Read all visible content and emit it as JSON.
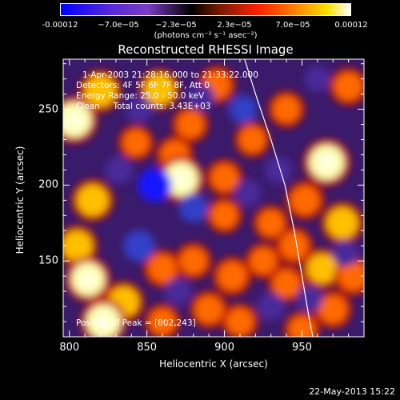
{
  "colorbar": {
    "labels": [
      "-0.00012",
      "−7.0e−05",
      "−2.3e−05",
      "2.3e−05",
      "7.0e−05",
      "0.00012"
    ],
    "units": "(photons cm⁻² s⁻¹ asec⁻²)"
  },
  "title": "Reconstructed RHESSI Image",
  "info": {
    "time": "1-Apr-2003 21:28:16.000 to 21:33:22.000",
    "detectors": "Detectors: 4F 5F 6F 7F 8F, Att 0",
    "energy": "Energy Range: 25.0 - 50.0 keV",
    "clean": "Clean     Total counts: 3.43E+03",
    "peak": "Position of Peak = [802,243]"
  },
  "footer": "22-May-2013 15:22",
  "chart_data": {
    "type": "heatmap",
    "title": "Reconstructed RHESSI Image",
    "xlabel": "Heliocentric X (arcsec)",
    "ylabel": "Heliocentric Y (arcsec)",
    "xlim": [
      796,
      990
    ],
    "ylim": [
      100,
      283
    ],
    "xticks": [
      800,
      850,
      900,
      950
    ],
    "yticks": [
      150,
      200,
      250
    ],
    "colorbar_range": [
      -0.00012,
      0.00012
    ],
    "blobs": [
      {
        "x": 803,
        "y": 243,
        "v": 1.0
      },
      {
        "x": 820,
        "y": 262,
        "v": 0.75
      },
      {
        "x": 858,
        "y": 263,
        "v": 0.7
      },
      {
        "x": 895,
        "y": 266,
        "v": 0.55
      },
      {
        "x": 878,
        "y": 240,
        "v": 0.5
      },
      {
        "x": 868,
        "y": 220,
        "v": 0.55
      },
      {
        "x": 843,
        "y": 228,
        "v": 0.45
      },
      {
        "x": 872,
        "y": 204,
        "v": 0.95
      },
      {
        "x": 900,
        "y": 205,
        "v": 0.5
      },
      {
        "x": 918,
        "y": 230,
        "v": 0.45
      },
      {
        "x": 940,
        "y": 250,
        "v": 0.5
      },
      {
        "x": 966,
        "y": 215,
        "v": 1.0
      },
      {
        "x": 952,
        "y": 190,
        "v": 0.6
      },
      {
        "x": 976,
        "y": 175,
        "v": 0.75
      },
      {
        "x": 930,
        "y": 175,
        "v": 0.45
      },
      {
        "x": 900,
        "y": 180,
        "v": 0.45
      },
      {
        "x": 815,
        "y": 190,
        "v": 0.75
      },
      {
        "x": 805,
        "y": 160,
        "v": 0.7
      },
      {
        "x": 812,
        "y": 138,
        "v": 0.9
      },
      {
        "x": 835,
        "y": 123,
        "v": 0.7
      },
      {
        "x": 822,
        "y": 110,
        "v": 0.95
      },
      {
        "x": 860,
        "y": 145,
        "v": 0.55
      },
      {
        "x": 880,
        "y": 150,
        "v": 0.5
      },
      {
        "x": 905,
        "y": 140,
        "v": 0.6
      },
      {
        "x": 925,
        "y": 150,
        "v": 0.45
      },
      {
        "x": 945,
        "y": 160,
        "v": 0.55
      },
      {
        "x": 940,
        "y": 135,
        "v": 0.5
      },
      {
        "x": 963,
        "y": 145,
        "v": 0.65
      },
      {
        "x": 983,
        "y": 140,
        "v": 0.6
      },
      {
        "x": 970,
        "y": 118,
        "v": 0.55
      },
      {
        "x": 890,
        "y": 118,
        "v": 0.55
      },
      {
        "x": 910,
        "y": 110,
        "v": 0.5
      },
      {
        "x": 950,
        "y": 105,
        "v": 0.45
      },
      {
        "x": 860,
        "y": 110,
        "v": 0.45
      },
      {
        "x": 980,
        "y": 265,
        "v": 0.55
      },
      {
        "x": 845,
        "y": 250,
        "v": -0.45
      },
      {
        "x": 885,
        "y": 258,
        "v": -0.5
      },
      {
        "x": 912,
        "y": 250,
        "v": -0.55
      },
      {
        "x": 855,
        "y": 200,
        "v": -0.9
      },
      {
        "x": 832,
        "y": 210,
        "v": -0.5
      },
      {
        "x": 880,
        "y": 185,
        "v": -0.6
      },
      {
        "x": 845,
        "y": 160,
        "v": -0.75
      },
      {
        "x": 915,
        "y": 195,
        "v": -0.45
      },
      {
        "x": 935,
        "y": 210,
        "v": -0.5
      },
      {
        "x": 930,
        "y": 120,
        "v": -0.5
      },
      {
        "x": 955,
        "y": 125,
        "v": -0.45
      },
      {
        "x": 870,
        "y": 130,
        "v": -0.45
      },
      {
        "x": 978,
        "y": 155,
        "v": -0.45
      },
      {
        "x": 960,
        "y": 270,
        "v": -0.4
      }
    ],
    "limb": [
      [
        913,
        283
      ],
      [
        921,
        257
      ],
      [
        930,
        230
      ],
      [
        939,
        200
      ],
      [
        945,
        170
      ],
      [
        950,
        140
      ],
      [
        955,
        110
      ],
      [
        957,
        100
      ]
    ]
  }
}
